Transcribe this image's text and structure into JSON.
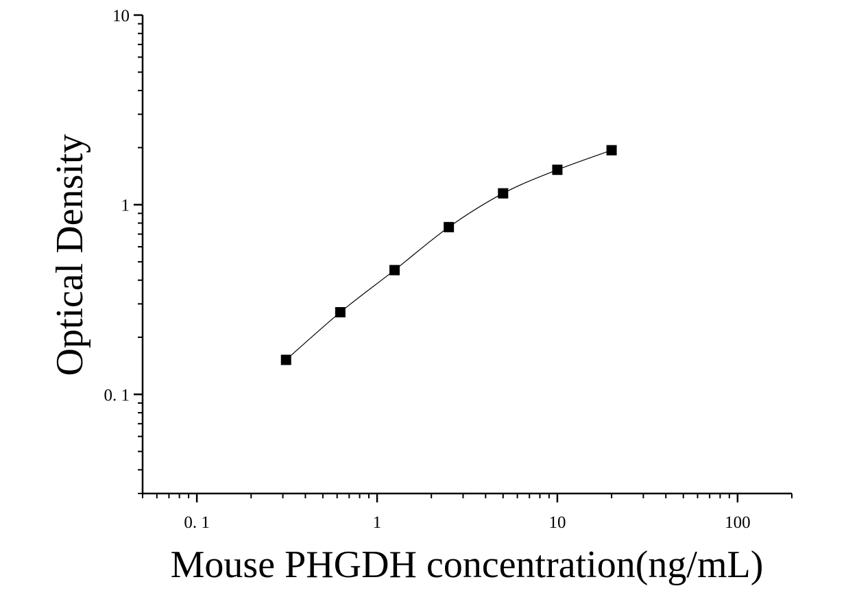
{
  "chart_data": {
    "type": "scatter",
    "title": "",
    "xlabel": "Mouse PHGDH concentration(ng/mL)",
    "ylabel": "Optical Density",
    "x_scale": "log",
    "y_scale": "log",
    "xlim": [
      0.05,
      200
    ],
    "ylim": [
      0.03,
      10
    ],
    "x_ticks": [
      {
        "value": 0.1,
        "label": "0. 1"
      },
      {
        "value": 1,
        "label": "1"
      },
      {
        "value": 10,
        "label": "10"
      },
      {
        "value": 100,
        "label": "100"
      }
    ],
    "y_ticks": [
      {
        "value": 0.1,
        "label": "0. 1"
      },
      {
        "value": 1,
        "label": "1"
      },
      {
        "value": 10,
        "label": "10"
      }
    ],
    "grid": false,
    "legend": "none",
    "series": [
      {
        "marker": "square",
        "color": "#000000",
        "fit_line": true,
        "x": [
          0.3125,
          0.625,
          1.25,
          2.5,
          5,
          10,
          20
        ],
        "y": [
          0.152,
          0.271,
          0.452,
          0.762,
          1.148,
          1.528,
          1.938
        ]
      }
    ]
  }
}
